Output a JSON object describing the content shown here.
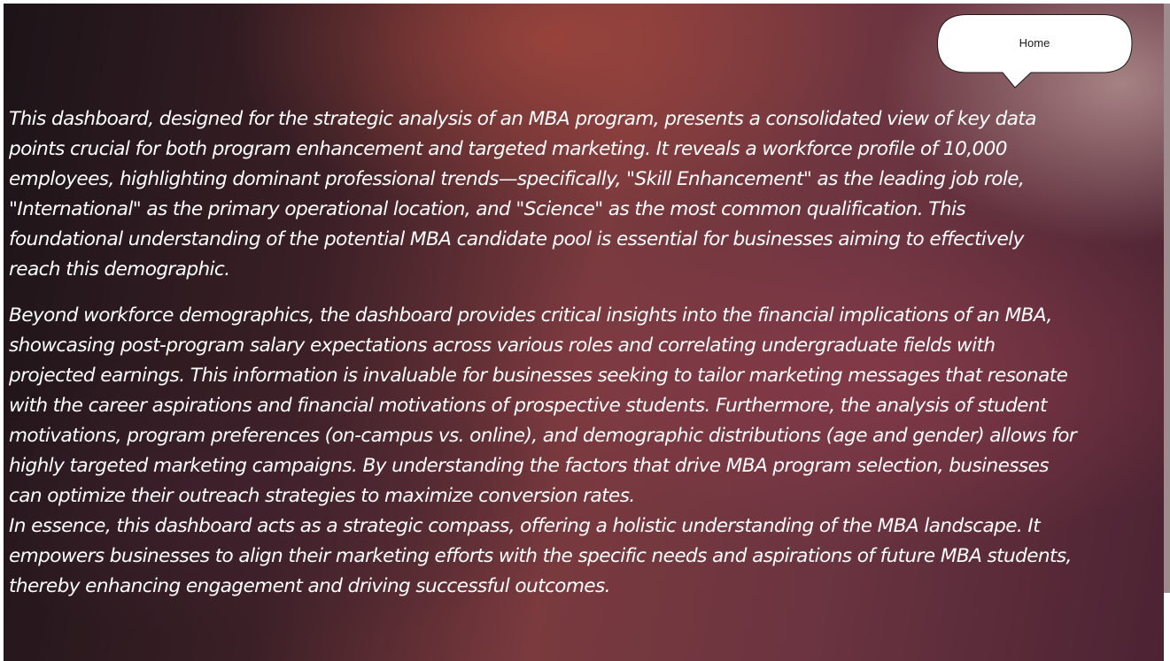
{
  "home_button": {
    "label": "Home"
  },
  "narrative": {
    "lines": [
      "This dashboard, designed for the strategic analysis of an MBA program, presents a consolidated view of key data",
      "points crucial for both program enhancement and targeted marketing.  It reveals a workforce profile of 10,000",
      "employees, highlighting dominant professional trends—specifically, \"Skill Enhancement\" as the leading job role,",
      "\"International\" as the primary operational location, and \"Science\" as the most common qualification.  This",
      "foundational understanding of the potential MBA candidate pool is essential for businesses aiming to effectively",
      "reach this demographic.",
      "Beyond workforce demographics, the dashboard provides critical insights into the financial implications of an MBA,",
      "showcasing post-program salary expectations across various roles and correlating undergraduate fields with",
      "projected earnings. This information is invaluable for businesses seeking to tailor marketing messages that resonate",
      "with the career aspirations and financial motivations of prospective students.  Furthermore, the analysis of student",
      "motivations, program preferences (on-campus vs. online), and demographic distributions (age and gender) allows for",
      "highly targeted marketing campaigns.  By understanding the factors that drive MBA program selection, businesses",
      "can optimize their outreach strategies to maximize conversion rates.",
      "In essence, this dashboard acts as a strategic compass, offering a holistic understanding of the MBA landscape.  It",
      "empowers businesses to align their marketing efforts with the specific needs and aspirations of future MBA students,",
      "thereby enhancing engagement and driving successful outcomes."
    ]
  },
  "colors": {
    "text": "#ffffff",
    "callout_fill": "#ffffff",
    "callout_stroke": "#1a1a1a"
  }
}
